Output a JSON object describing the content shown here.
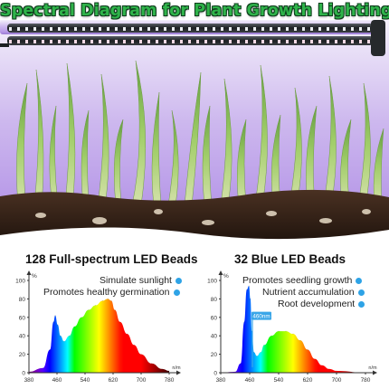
{
  "header": {
    "title": "Spectral Diagram for Plant Growth Lighting"
  },
  "panels": [
    {
      "title": "128 Full-spectrum LED Beads",
      "notes": [
        "Simulate sunlight",
        "Promotes healthy germination"
      ]
    },
    {
      "title": "32 Blue LED Beads",
      "notes": [
        "Promotes seedling growth",
        "Nutrient accumulation",
        "Root development"
      ],
      "marker_label": "460nm"
    }
  ],
  "colors": {
    "title_green": "#2fb34a",
    "dot_blue": "#2ea3e6"
  },
  "chart_data": [
    {
      "type": "area",
      "title": "128 Full-spectrum LED Beads",
      "ylabel": "%",
      "xlabel": "n/m",
      "ylim": [
        0,
        100
      ],
      "xlim": [
        380,
        780
      ],
      "x_ticks": [
        380,
        460,
        540,
        620,
        700,
        780
      ],
      "y_ticks": [
        0,
        20,
        40,
        60,
        80,
        100
      ],
      "x": [
        380,
        420,
        440,
        450,
        455,
        462,
        470,
        480,
        495,
        510,
        530,
        550,
        570,
        590,
        605,
        615,
        625,
        640,
        660,
        680,
        700,
        730,
        760,
        780
      ],
      "values": [
        1,
        5,
        25,
        55,
        62,
        52,
        40,
        34,
        40,
        50,
        60,
        68,
        73,
        78,
        80,
        78,
        68,
        55,
        42,
        30,
        20,
        10,
        4,
        2
      ]
    },
    {
      "type": "area",
      "title": "32 Blue LED Beads",
      "ylabel": "%",
      "xlabel": "n/m",
      "ylim": [
        0,
        100
      ],
      "xlim": [
        380,
        780
      ],
      "x_ticks": [
        380,
        460,
        540,
        620,
        700,
        780
      ],
      "y_ticks": [
        0,
        20,
        40,
        60,
        80,
        100
      ],
      "marker_x": 460,
      "x": [
        380,
        420,
        435,
        445,
        452,
        458,
        462,
        466,
        472,
        480,
        490,
        500,
        520,
        540,
        560,
        580,
        600,
        620,
        640,
        660,
        680,
        700,
        780
      ],
      "values": [
        0,
        1,
        10,
        55,
        90,
        94,
        80,
        45,
        22,
        18,
        22,
        30,
        40,
        45,
        45,
        42,
        35,
        25,
        15,
        8,
        4,
        2,
        0
      ]
    }
  ]
}
